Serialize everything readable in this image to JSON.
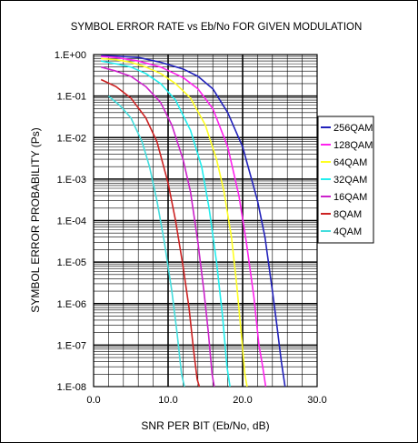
{
  "chart_data": {
    "type": "line",
    "title": "SYMBOL ERROR RATE vs Eb/No FOR GIVEN MODULATION",
    "xlabel": "SNR PER BIT (Eb/No, dB)",
    "ylabel": "SYMBOL ERROR PROBABILITY (Ps)",
    "xlim": [
      0,
      30
    ],
    "ylim": [
      1e-08,
      1
    ],
    "yscale": "log",
    "x_ticks": [
      {
        "value": 0,
        "label": "0.0"
      },
      {
        "value": 10,
        "label": "10.0"
      },
      {
        "value": 20,
        "label": "20.0"
      },
      {
        "value": 30,
        "label": "30.0"
      }
    ],
    "y_ticks": [
      {
        "value": 1,
        "label": "1.E+00"
      },
      {
        "value": 0.1,
        "label": "1.E-01"
      },
      {
        "value": 0.01,
        "label": "1.E-02"
      },
      {
        "value": 0.001,
        "label": "1.E-03"
      },
      {
        "value": 0.0001,
        "label": "1.E-04"
      },
      {
        "value": 1e-05,
        "label": "1.E-05"
      },
      {
        "value": 1e-06,
        "label": "1.E-06"
      },
      {
        "value": 1e-07,
        "label": "1.E-07"
      },
      {
        "value": 1e-08,
        "label": "1.E-08"
      }
    ],
    "grid": true,
    "legend_position": "right",
    "series": [
      {
        "name": "256QAM",
        "color": "#2222bb",
        "x": [
          1,
          3,
          6,
          9,
          12,
          14,
          16,
          18,
          20,
          22,
          23,
          24,
          24.6,
          25.2,
          25.7
        ],
        "y": [
          0.95,
          0.92,
          0.85,
          0.65,
          0.45,
          0.3,
          0.15,
          0.04,
          0.006,
          0.0003,
          4e-05,
          2e-06,
          3e-07,
          4e-08,
          1e-08
        ]
      },
      {
        "name": "128QAM",
        "color": "#ff22ee",
        "x": [
          1,
          3,
          6,
          9,
          12,
          14,
          16,
          18,
          19.5,
          20.5,
          21.5,
          22.2,
          22.7,
          23.1
        ],
        "y": [
          0.9,
          0.85,
          0.7,
          0.5,
          0.28,
          0.15,
          0.05,
          0.006,
          0.0004,
          3e-05,
          1.5e-06,
          1e-07,
          3e-08,
          1e-08
        ]
      },
      {
        "name": "64QAM",
        "color": "#ffff22",
        "x": [
          1,
          3,
          5,
          7,
          9,
          11,
          13,
          15,
          16.5,
          17.5,
          18.5,
          19.2,
          19.8,
          20.3,
          20.6
        ],
        "y": [
          0.8,
          0.75,
          0.65,
          0.5,
          0.35,
          0.2,
          0.09,
          0.02,
          0.003,
          0.0005,
          4e-05,
          3e-06,
          2e-07,
          2e-08,
          1e-08
        ]
      },
      {
        "name": "32QAM",
        "color": "#22eeee",
        "x": [
          1,
          3,
          5,
          7,
          9,
          11,
          13,
          14.5,
          15.5,
          16.5,
          17.3,
          17.9,
          18.3
        ],
        "y": [
          0.7,
          0.6,
          0.5,
          0.35,
          0.2,
          0.08,
          0.015,
          0.002,
          0.0002,
          1e-05,
          5e-07,
          3e-08,
          1e-08
        ]
      },
      {
        "name": "16QAM",
        "color": "#cc22cc",
        "x": [
          1,
          3,
          5,
          7,
          9,
          10.5,
          12,
          13,
          14,
          14.8,
          15.4,
          15.9,
          16.2
        ],
        "y": [
          0.5,
          0.4,
          0.3,
          0.17,
          0.07,
          0.02,
          0.003,
          0.0005,
          3e-05,
          2e-06,
          2e-07,
          2e-08,
          1e-08
        ]
      },
      {
        "name": "8QAM",
        "color": "#cc2222",
        "x": [
          1,
          3,
          5,
          7,
          8.5,
          10,
          11,
          12,
          12.8,
          13.4,
          13.9,
          14.2
        ],
        "y": [
          0.25,
          0.17,
          0.09,
          0.03,
          0.008,
          0.0008,
          0.0001,
          8e-06,
          8e-07,
          8e-08,
          1.5e-08,
          1e-08
        ]
      },
      {
        "name": "4QAM",
        "color": "#44dddd",
        "x": [
          2,
          3.5,
          5,
          6.5,
          7.5,
          8.5,
          9.5,
          10.5,
          11.2,
          11.8,
          12.2
        ],
        "y": [
          0.1,
          0.06,
          0.03,
          0.008,
          0.002,
          0.0003,
          3e-05,
          2e-06,
          2e-07,
          2e-08,
          1e-08
        ]
      }
    ]
  }
}
